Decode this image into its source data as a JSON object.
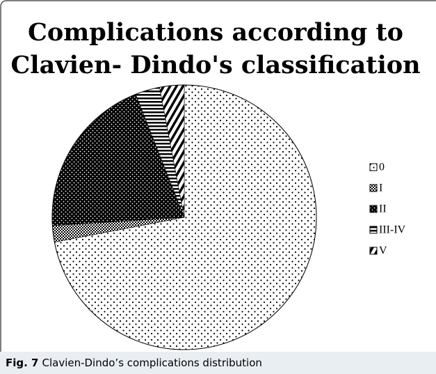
{
  "chart_data": {
    "type": "pie",
    "title": [
      "Complications according to",
      "Clavien- Dindo's classification"
    ],
    "categories": [
      "0",
      "I",
      "II",
      "III-IV",
      "V"
    ],
    "values": [
      72,
      2,
      20,
      3,
      3
    ],
    "legend": "right"
  },
  "caption": {
    "label": "Fig. 7",
    "text": "Clavien-Dindo’s complications distribution"
  }
}
